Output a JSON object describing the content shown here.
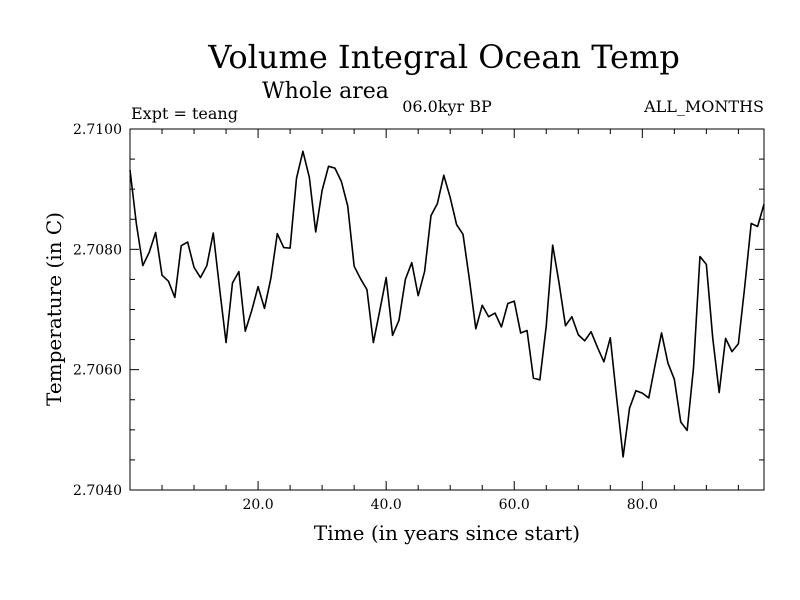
{
  "chart_data": {
    "type": "line",
    "title": "Volume Integral Ocean Temp",
    "subtitle": "Whole area",
    "left_note": "Expt = teang",
    "center_note": "06.0kyr BP",
    "right_note": "ALL_MONTHS",
    "xlabel": "Time (in years since start)",
    "ylabel": "Temperature (in C)",
    "xlim": [
      0,
      99
    ],
    "ylim": [
      2.704,
      2.71
    ],
    "x_ticks": [
      20,
      40,
      60,
      80
    ],
    "x_tick_labels": [
      "20.0",
      "40.0",
      "60.0",
      "80.0"
    ],
    "y_ticks": [
      2.704,
      2.706,
      2.708,
      2.71
    ],
    "y_tick_labels": [
      "2.7040",
      "2.7060",
      "2.7080",
      "2.7100"
    ],
    "series": [
      {
        "name": "Volume Integral Ocean Temp",
        "x": [
          0,
          1,
          2,
          3,
          4,
          5,
          6,
          7,
          8,
          9,
          10,
          11,
          12,
          13,
          14,
          15,
          16,
          17,
          18,
          19,
          20,
          21,
          22,
          23,
          24,
          25,
          26,
          27,
          28,
          29,
          30,
          31,
          32,
          33,
          34,
          35,
          36,
          37,
          38,
          39,
          40,
          41,
          42,
          43,
          44,
          45,
          46,
          47,
          48,
          49,
          50,
          51,
          52,
          53,
          54,
          55,
          56,
          57,
          58,
          59,
          60,
          61,
          62,
          63,
          64,
          65,
          66,
          67,
          68,
          69,
          70,
          71,
          72,
          73,
          74,
          75,
          76,
          77,
          78,
          79,
          80,
          81,
          82,
          83,
          84,
          85,
          86,
          87,
          88,
          89,
          90,
          91,
          92,
          93,
          94,
          95,
          96,
          97,
          98,
          99
        ],
        "y": [
          2.70932,
          2.70842,
          2.70773,
          2.70795,
          2.70828,
          2.70757,
          2.70747,
          2.7072,
          2.70806,
          2.70812,
          2.7077,
          2.70753,
          2.70773,
          2.70827,
          2.70734,
          2.70645,
          2.70744,
          2.70763,
          2.70664,
          2.70698,
          2.70738,
          2.70702,
          2.70752,
          2.70826,
          2.70803,
          2.70802,
          2.70918,
          2.70963,
          2.7092,
          2.70829,
          2.70898,
          2.70938,
          2.70935,
          2.70913,
          2.70872,
          2.70772,
          2.70751,
          2.70733,
          2.70645,
          2.70698,
          2.70753,
          2.70657,
          2.70682,
          2.7075,
          2.70778,
          2.70723,
          2.70763,
          2.70856,
          2.70876,
          2.70923,
          2.70886,
          2.70841,
          2.70825,
          2.7075,
          2.70668,
          2.70707,
          2.70688,
          2.70694,
          2.70671,
          2.7071,
          2.70714,
          2.70661,
          2.70665,
          2.70586,
          2.70583,
          2.70673,
          2.70807,
          2.70744,
          2.70673,
          2.70688,
          2.70658,
          2.70648,
          2.70663,
          2.70637,
          2.70613,
          2.70653,
          2.70552,
          2.70455,
          2.70536,
          2.70565,
          2.70561,
          2.70553,
          2.70608,
          2.70661,
          2.70611,
          2.70584,
          2.70513,
          2.70499,
          2.70604,
          2.70788,
          2.70775,
          2.70652,
          2.70562,
          2.70652,
          2.7063,
          2.70643,
          2.70739,
          2.70843,
          2.70838,
          2.70875
        ]
      }
    ]
  }
}
